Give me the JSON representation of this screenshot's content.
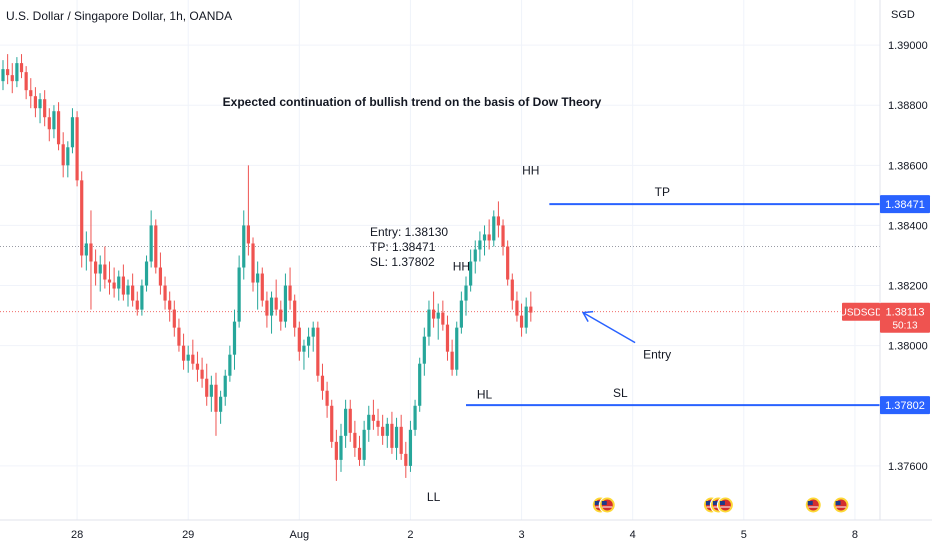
{
  "chart_data": {
    "type": "candlestick",
    "title": "U.S. Dollar / Singapore Dollar, 1h, OANDA",
    "currency_label": "SGD",
    "annotation_main": "Expected continuation of bullish trend on the basis of Dow Theory",
    "trade_box": [
      "Entry: 1.38130",
      "TP: 1.38471",
      "SL: 1.37802"
    ],
    "y_ticks": [
      "1.39000",
      "1.38800",
      "1.38600",
      "1.38400",
      "1.38200",
      "1.38000",
      "1.37600"
    ],
    "y_tick_values": [
      1.39,
      1.388,
      1.386,
      1.384,
      1.382,
      1.38,
      1.376
    ],
    "ylim": [
      1.3742,
      1.3915
    ],
    "x_ticks": [
      {
        "label": "28",
        "bar": 16
      },
      {
        "label": "29",
        "bar": 40
      },
      {
        "label": "Aug",
        "bar": 64
      },
      {
        "label": "2",
        "bar": 88
      },
      {
        "label": "3",
        "bar": 112
      },
      {
        "label": "4",
        "bar": 136
      },
      {
        "label": "5",
        "bar": 160
      },
      {
        "label": "8",
        "bar": 184
      }
    ],
    "colors": {
      "up": "#26a69a",
      "down": "#ef5350",
      "level": "#2962ff",
      "price_tag": "#ef5350",
      "arrow": "#2962ff"
    },
    "levels": [
      {
        "name": "TP",
        "value": 1.38471,
        "tag": "1.38471",
        "from_bar": 118
      },
      {
        "name": "SL",
        "value": 1.37802,
        "tag": "1.37802",
        "from_bar": 100
      }
    ],
    "current_price": {
      "symbol": "USDSGD",
      "value": 1.38113,
      "price": "1.38113",
      "countdown": "50:13"
    },
    "dotted_line": 1.3833,
    "pattern_labels": [
      {
        "text": "HH",
        "bar": 114,
        "value": 1.3855,
        "pos": "above"
      },
      {
        "text": "HH",
        "bar": 99,
        "value": 1.3823,
        "pos": "above"
      },
      {
        "text": "HL",
        "bar": 104,
        "value": 1.3787,
        "pos": "below"
      },
      {
        "text": "LL",
        "bar": 93,
        "value": 1.3753,
        "pos": "below"
      }
    ],
    "entry_arrow": {
      "label": "Entry",
      "to_bar": 124,
      "to_value": 1.3811
    },
    "events": [
      {
        "bar": 129,
        "count": 2
      },
      {
        "bar": 153,
        "count": 3
      },
      {
        "bar": 175,
        "count": 1
      },
      {
        "bar": 181,
        "count": 1
      }
    ],
    "candles": [
      [
        1.3888,
        1.3895,
        1.3885,
        1.3892
      ],
      [
        1.3892,
        1.3897,
        1.3887,
        1.389
      ],
      [
        1.389,
        1.3894,
        1.3884,
        1.3888
      ],
      [
        1.3888,
        1.3896,
        1.3886,
        1.3894
      ],
      [
        1.3894,
        1.3897,
        1.3889,
        1.3891
      ],
      [
        1.3891,
        1.3893,
        1.3882,
        1.3885
      ],
      [
        1.3885,
        1.3889,
        1.3879,
        1.3883
      ],
      [
        1.3883,
        1.3886,
        1.3876,
        1.3879
      ],
      [
        1.3879,
        1.3884,
        1.3874,
        1.3882
      ],
      [
        1.3882,
        1.3885,
        1.3873,
        1.3876
      ],
      [
        1.3876,
        1.3879,
        1.3868,
        1.3872
      ],
      [
        1.3872,
        1.388,
        1.3869,
        1.3878
      ],
      [
        1.3878,
        1.3881,
        1.3865,
        1.3867
      ],
      [
        1.3867,
        1.3871,
        1.3856,
        1.386
      ],
      [
        1.386,
        1.3868,
        1.3856,
        1.3866
      ],
      [
        1.3866,
        1.3879,
        1.3864,
        1.3876
      ],
      [
        1.3876,
        1.3878,
        1.3853,
        1.3855
      ],
      [
        1.3855,
        1.3858,
        1.3826,
        1.383
      ],
      [
        1.383,
        1.3838,
        1.3825,
        1.3834
      ],
      [
        1.3834,
        1.3845,
        1.3812,
        1.3828
      ],
      [
        1.3828,
        1.3832,
        1.382,
        1.3824
      ],
      [
        1.3824,
        1.383,
        1.3818,
        1.3827
      ],
      [
        1.3827,
        1.3833,
        1.3819,
        1.3822
      ],
      [
        1.3822,
        1.3828,
        1.3817,
        1.3821
      ],
      [
        1.3821,
        1.3826,
        1.3816,
        1.3819
      ],
      [
        1.3819,
        1.3825,
        1.3815,
        1.3823
      ],
      [
        1.3823,
        1.3827,
        1.3815,
        1.3817
      ],
      [
        1.3817,
        1.3822,
        1.3813,
        1.382
      ],
      [
        1.382,
        1.3824,
        1.3813,
        1.3815
      ],
      [
        1.3815,
        1.3818,
        1.381,
        1.3812
      ],
      [
        1.3812,
        1.3822,
        1.381,
        1.382
      ],
      [
        1.382,
        1.383,
        1.3818,
        1.3828
      ],
      [
        1.3828,
        1.3845,
        1.3826,
        1.384
      ],
      [
        1.384,
        1.3842,
        1.3824,
        1.3826
      ],
      [
        1.3826,
        1.3831,
        1.3817,
        1.382
      ],
      [
        1.382,
        1.3823,
        1.3812,
        1.3815
      ],
      [
        1.3815,
        1.3818,
        1.3808,
        1.3812
      ],
      [
        1.3812,
        1.3815,
        1.3803,
        1.3806
      ],
      [
        1.3806,
        1.3809,
        1.3798,
        1.38
      ],
      [
        1.38,
        1.3804,
        1.3792,
        1.3795
      ],
      [
        1.3795,
        1.38,
        1.3791,
        1.3797
      ],
      [
        1.3797,
        1.3802,
        1.3792,
        1.3794
      ],
      [
        1.3794,
        1.3798,
        1.3788,
        1.3792
      ],
      [
        1.3792,
        1.3796,
        1.3786,
        1.3789
      ],
      [
        1.3789,
        1.3794,
        1.378,
        1.3783
      ],
      [
        1.3783,
        1.379,
        1.3778,
        1.3787
      ],
      [
        1.3787,
        1.3791,
        1.377,
        1.3778
      ],
      [
        1.3778,
        1.3785,
        1.3774,
        1.3783
      ],
      [
        1.3783,
        1.3792,
        1.378,
        1.379
      ],
      [
        1.379,
        1.38,
        1.3788,
        1.3797
      ],
      [
        1.3797,
        1.3812,
        1.3792,
        1.3808
      ],
      [
        1.3808,
        1.383,
        1.3806,
        1.3826
      ],
      [
        1.3826,
        1.3845,
        1.3822,
        1.384
      ],
      [
        1.384,
        1.386,
        1.383,
        1.3834
      ],
      [
        1.3834,
        1.3836,
        1.3818,
        1.3821
      ],
      [
        1.3821,
        1.3828,
        1.3812,
        1.3824
      ],
      [
        1.3824,
        1.3826,
        1.3813,
        1.3815
      ],
      [
        1.3815,
        1.3818,
        1.3806,
        1.381
      ],
      [
        1.381,
        1.3818,
        1.3804,
        1.3816
      ],
      [
        1.3816,
        1.3822,
        1.381,
        1.3812
      ],
      [
        1.3812,
        1.3815,
        1.3805,
        1.3808
      ],
      [
        1.3808,
        1.3824,
        1.3806,
        1.382
      ],
      [
        1.382,
        1.3826,
        1.3812,
        1.3815
      ],
      [
        1.3815,
        1.3817,
        1.3803,
        1.3806
      ],
      [
        1.3806,
        1.3808,
        1.3795,
        1.3798
      ],
      [
        1.3798,
        1.3802,
        1.3792,
        1.38
      ],
      [
        1.38,
        1.3806,
        1.3796,
        1.3803
      ],
      [
        1.3803,
        1.3808,
        1.3798,
        1.3806
      ],
      [
        1.3806,
        1.3808,
        1.3788,
        1.379
      ],
      [
        1.379,
        1.3794,
        1.3782,
        1.3785
      ],
      [
        1.3785,
        1.3788,
        1.3776,
        1.378
      ],
      [
        1.378,
        1.3782,
        1.3766,
        1.3768
      ],
      [
        1.3768,
        1.3772,
        1.3755,
        1.3762
      ],
      [
        1.3762,
        1.3774,
        1.3758,
        1.377
      ],
      [
        1.377,
        1.3782,
        1.3766,
        1.3779
      ],
      [
        1.3779,
        1.3782,
        1.3768,
        1.3771
      ],
      [
        1.3771,
        1.3775,
        1.3763,
        1.3766
      ],
      [
        1.3766,
        1.377,
        1.376,
        1.3762
      ],
      [
        1.3762,
        1.3775,
        1.376,
        1.3772
      ],
      [
        1.3772,
        1.378,
        1.3768,
        1.3777
      ],
      [
        1.3777,
        1.3782,
        1.3772,
        1.3775
      ],
      [
        1.3775,
        1.3779,
        1.377,
        1.3773
      ],
      [
        1.3773,
        1.3777,
        1.3767,
        1.377
      ],
      [
        1.377,
        1.3776,
        1.3766,
        1.3774
      ],
      [
        1.3774,
        1.3778,
        1.3764,
        1.3766
      ],
      [
        1.3766,
        1.3776,
        1.3762,
        1.3773
      ],
      [
        1.3773,
        1.3777,
        1.3762,
        1.3764
      ],
      [
        1.3764,
        1.3768,
        1.3756,
        1.376
      ],
      [
        1.376,
        1.3775,
        1.3758,
        1.3772
      ],
      [
        1.3772,
        1.3782,
        1.377,
        1.378
      ],
      [
        1.378,
        1.3796,
        1.3778,
        1.3794
      ],
      [
        1.3794,
        1.3806,
        1.379,
        1.3803
      ],
      [
        1.3803,
        1.3815,
        1.38,
        1.3812
      ],
      [
        1.3812,
        1.3818,
        1.3806,
        1.3809
      ],
      [
        1.3809,
        1.3814,
        1.3802,
        1.3811
      ],
      [
        1.3811,
        1.3815,
        1.3805,
        1.3807
      ],
      [
        1.3807,
        1.381,
        1.3795,
        1.3798
      ],
      [
        1.3798,
        1.3802,
        1.379,
        1.3792
      ],
      [
        1.3792,
        1.3808,
        1.379,
        1.3806
      ],
      [
        1.3806,
        1.3818,
        1.3804,
        1.3815
      ],
      [
        1.3815,
        1.3823,
        1.381,
        1.382
      ],
      [
        1.382,
        1.3832,
        1.3818,
        1.3828
      ],
      [
        1.3828,
        1.3835,
        1.3824,
        1.3832
      ],
      [
        1.3832,
        1.3838,
        1.3828,
        1.3835
      ],
      [
        1.3835,
        1.384,
        1.383,
        1.3837
      ],
      [
        1.3837,
        1.3842,
        1.3832,
        1.3835
      ],
      [
        1.3835,
        1.3845,
        1.3833,
        1.3843
      ],
      [
        1.3843,
        1.3848,
        1.3836,
        1.384
      ],
      [
        1.384,
        1.3842,
        1.383,
        1.3833
      ],
      [
        1.3833,
        1.3835,
        1.382,
        1.3822
      ],
      [
        1.3822,
        1.3824,
        1.3812,
        1.3815
      ],
      [
        1.3815,
        1.3818,
        1.3808,
        1.381
      ],
      [
        1.381,
        1.3814,
        1.3803,
        1.3806
      ],
      [
        1.3806,
        1.3816,
        1.3804,
        1.3813
      ],
      [
        1.3813,
        1.3818,
        1.3808,
        1.3811
      ]
    ]
  }
}
